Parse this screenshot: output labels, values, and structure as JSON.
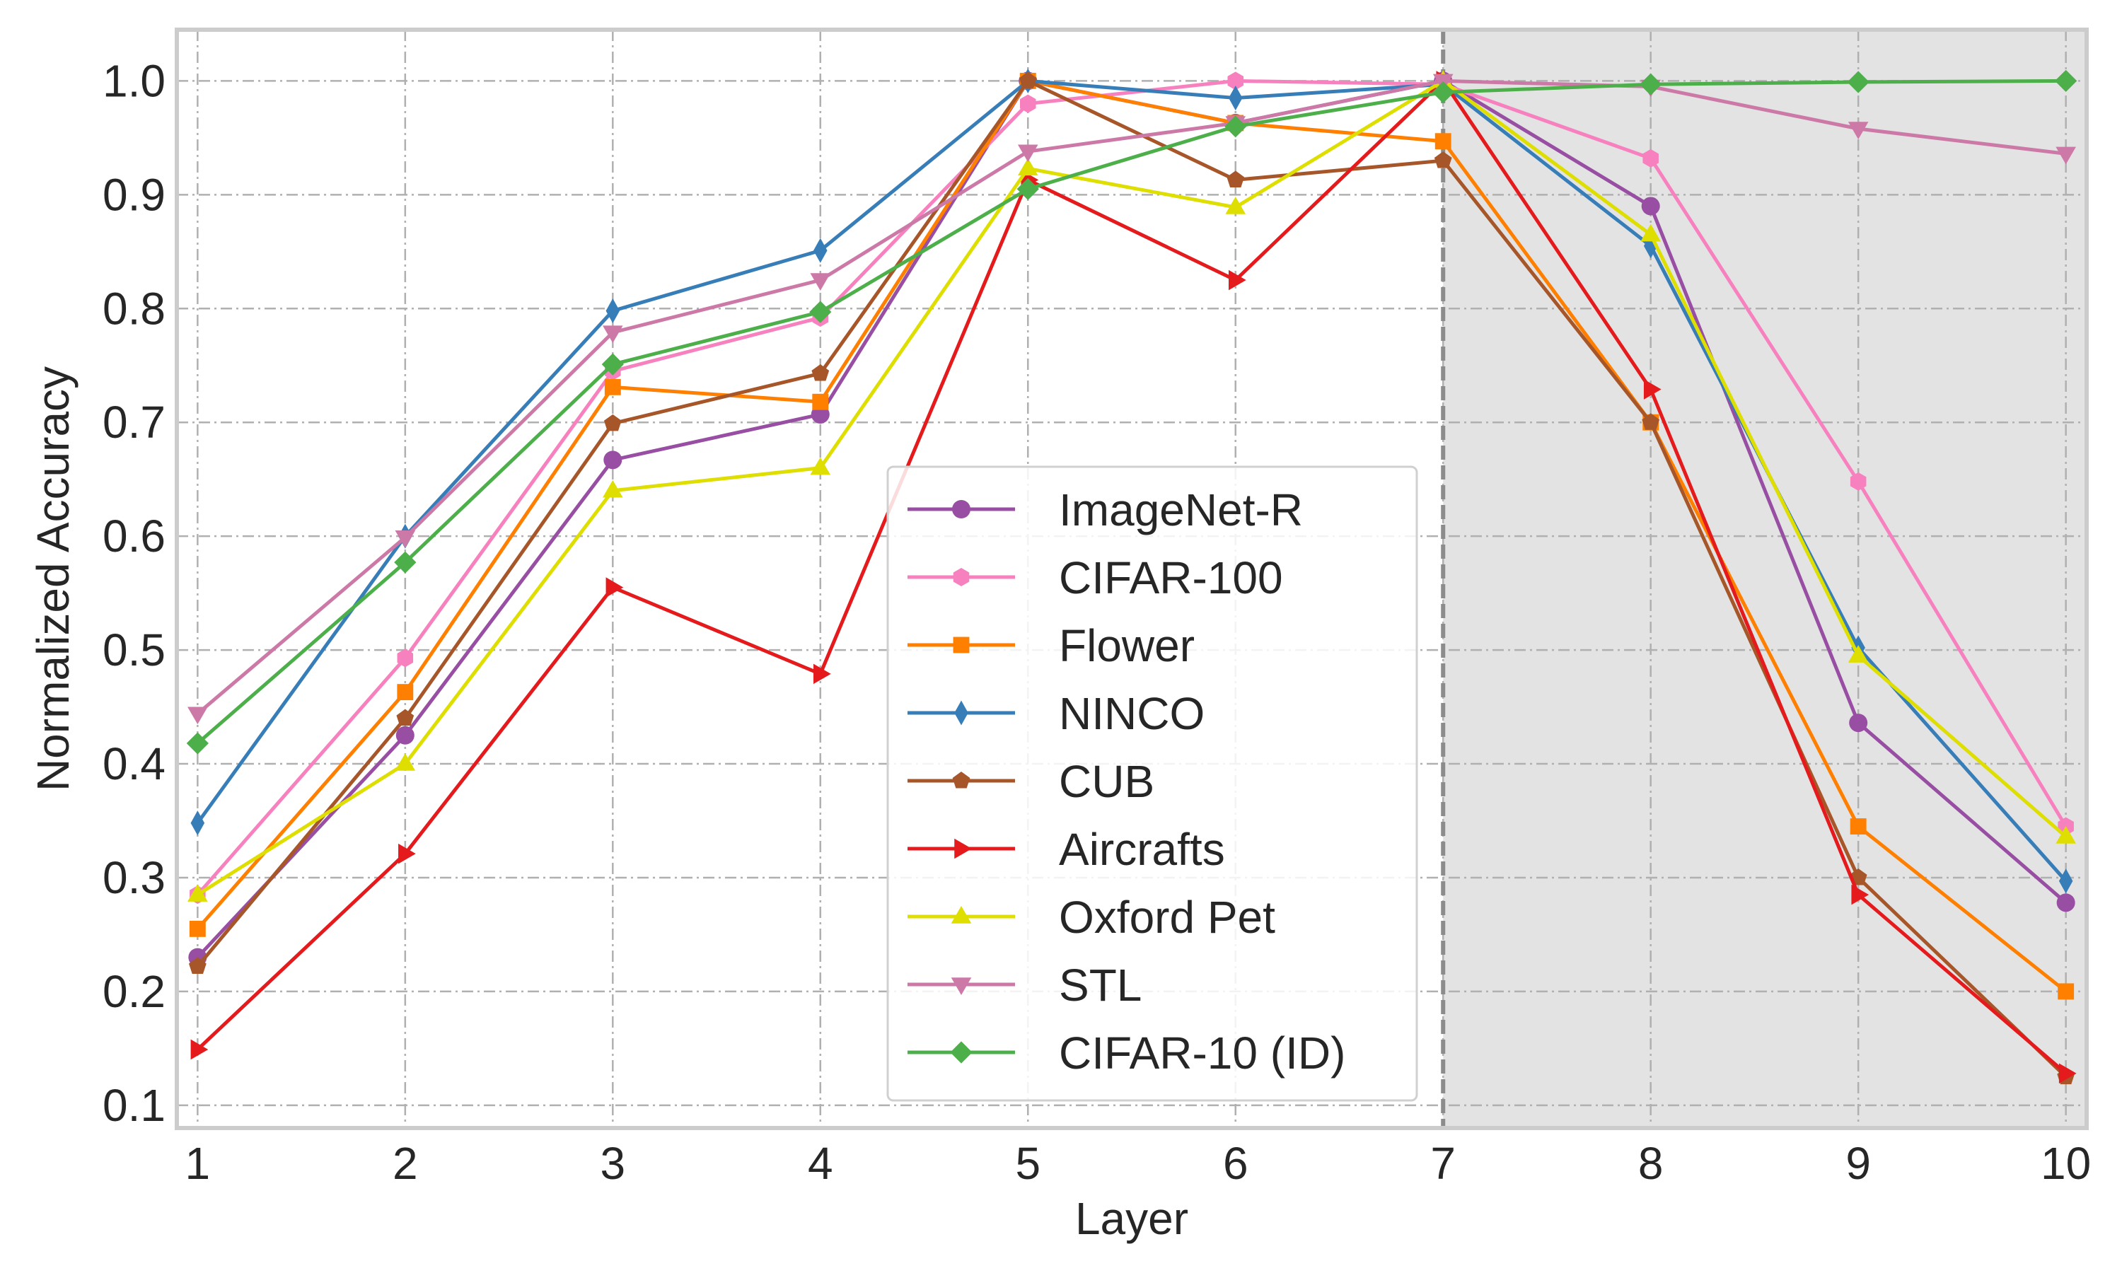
{
  "chart_data": {
    "type": "line",
    "title": "",
    "xlabel": "Layer",
    "ylabel": "Normalized  Accuracy",
    "x": [
      1,
      2,
      3,
      4,
      5,
      6,
      7,
      8,
      9,
      10
    ],
    "xlim": [
      0.9,
      10.1
    ],
    "ylim": [
      0.08,
      1.045
    ],
    "xticks": [
      1,
      2,
      3,
      4,
      5,
      6,
      7,
      8,
      9,
      10
    ],
    "yticks": [
      0.1,
      0.2,
      0.3,
      0.4,
      0.5,
      0.6,
      0.7,
      0.8,
      0.9,
      1.0
    ],
    "ytick_labels": [
      "0.1",
      "0.2",
      "0.3",
      "0.4",
      "0.5",
      "0.6",
      "0.7",
      "0.8",
      "0.9",
      "1.0"
    ],
    "grid": true,
    "shaded_region": {
      "x_start": 7,
      "x_end": 10.1,
      "color": "#e3e3e3"
    },
    "vertical_line": {
      "x": 7,
      "style": "dashed",
      "color": "#8c8c8c"
    },
    "legend_position": "center",
    "series": [
      {
        "name": "ImageNet-R",
        "color": "#984ea3",
        "marker": "circle",
        "values": [
          0.23,
          0.425,
          0.667,
          0.707,
          1.0,
          0.963,
          1.0,
          0.89,
          0.436,
          0.278
        ]
      },
      {
        "name": "CIFAR-100",
        "color": "#f781bf",
        "marker": "hexagon",
        "values": [
          0.285,
          0.493,
          0.745,
          0.792,
          0.98,
          1.0,
          0.997,
          0.932,
          0.648,
          0.345
        ]
      },
      {
        "name": "Flower",
        "color": "#ff7f00",
        "marker": "square",
        "values": [
          0.255,
          0.463,
          0.731,
          0.718,
          1.0,
          0.963,
          0.947,
          0.7,
          0.345,
          0.2
        ]
      },
      {
        "name": "NINCO",
        "color": "#377eb8",
        "marker": "thin-diamond",
        "values": [
          0.348,
          0.6,
          0.798,
          0.851,
          1.0,
          0.985,
          0.997,
          0.855,
          0.502,
          0.297
        ]
      },
      {
        "name": "CUB",
        "color": "#a65628",
        "marker": "pentagon",
        "values": [
          0.222,
          0.44,
          0.699,
          0.743,
          1.0,
          0.913,
          0.93,
          0.7,
          0.3,
          0.125
        ]
      },
      {
        "name": "Aircrafts",
        "color": "#e41a1c",
        "marker": "triangle-right",
        "values": [
          0.149,
          0.321,
          0.555,
          0.479,
          0.913,
          0.825,
          1.0,
          0.729,
          0.285,
          0.128
        ]
      },
      {
        "name": "Oxford Pet",
        "color": "#dede00",
        "marker": "triangle-up",
        "values": [
          0.285,
          0.4,
          0.64,
          0.66,
          0.923,
          0.889,
          1.0,
          0.865,
          0.495,
          0.336
        ]
      },
      {
        "name": "STL",
        "color": "#cc79a7",
        "marker": "triangle-down",
        "values": [
          0.444,
          0.599,
          0.779,
          0.825,
          0.938,
          0.963,
          1.0,
          0.995,
          0.958,
          0.936
        ]
      },
      {
        "name": "CIFAR-10 (ID)",
        "color": "#4daf4a",
        "marker": "diamond",
        "values": [
          0.418,
          0.577,
          0.751,
          0.797,
          0.905,
          0.96,
          0.99,
          0.997,
          0.999,
          1.0
        ]
      }
    ]
  }
}
